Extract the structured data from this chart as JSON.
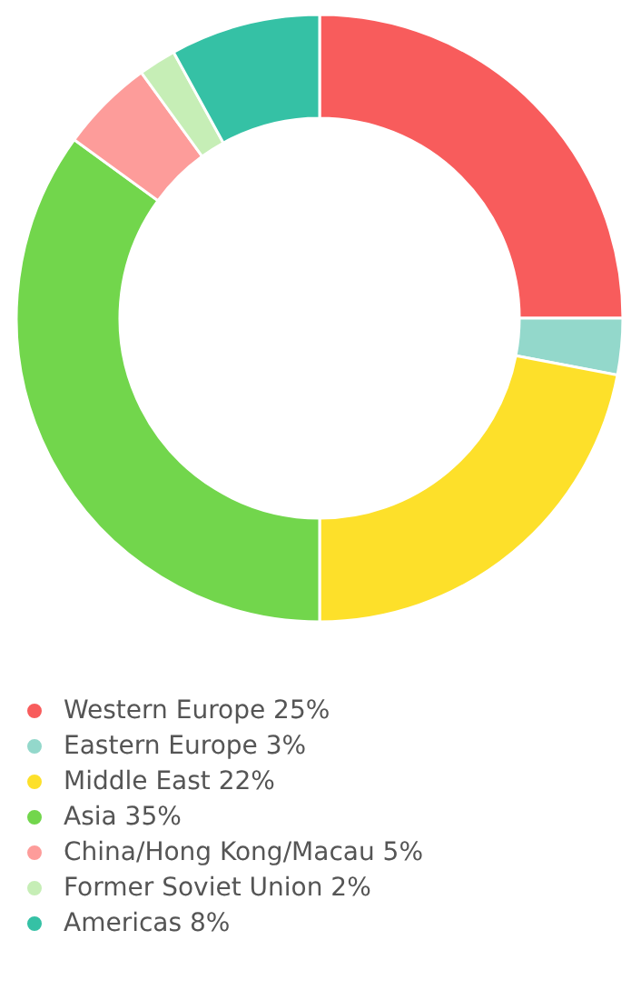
{
  "chart_data": {
    "type": "donut",
    "categories": [
      "Western Europe",
      "Eastern Europe",
      "Middle East",
      "Asia",
      "China/Hong Kong/Macau",
      "Former Soviet Union",
      "Americas"
    ],
    "values": [
      25,
      3,
      22,
      35,
      5,
      2,
      8
    ],
    "value_labels": [
      "25%",
      "3%",
      "22%",
      "35%",
      "5%",
      "2%",
      "8%"
    ],
    "colors": [
      "#f85c5c",
      "#93d8cb",
      "#fde02a",
      "#72d64c",
      "#fd9c9a",
      "#c6eeb6",
      "#35c1a5"
    ],
    "legend": "bottom left"
  }
}
